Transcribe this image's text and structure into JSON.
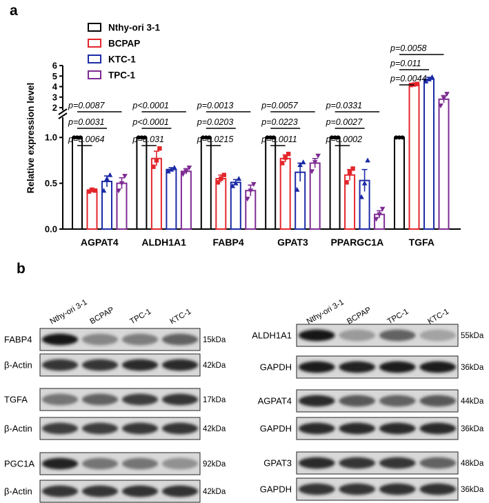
{
  "panels": {
    "a": "a",
    "b": "b"
  },
  "chart_data": {
    "type": "bar",
    "ylabel": "Relative expression level",
    "categories": [
      "AGPAT4",
      "ALDH1A1",
      "FABP4",
      "GPAT3",
      "PPARGC1A",
      "TGFA"
    ],
    "y_ticks_lower": [
      "0.0",
      "0.5",
      "1.0"
    ],
    "y_ticks_upper": [
      "2",
      "3",
      "4",
      "5",
      "6"
    ],
    "axis_break": {
      "lower": [
        0,
        1.22
      ],
      "upper": [
        2,
        6
      ]
    },
    "colors": {
      "Nthy-ori 3-1": "#000000",
      "BCPAP": "#e3262b",
      "KTC-1": "#1b2aa6",
      "TPC-1": "#7d2b92"
    },
    "series": [
      {
        "name": "Nthy-ori 3-1",
        "marker": "circle",
        "values": [
          1.0,
          1.0,
          1.0,
          1.0,
          1.0,
          1.0
        ],
        "errors": [
          0.01,
          0.01,
          0.01,
          0.01,
          0.01,
          0.01
        ],
        "points": [
          [
            1,
            1,
            1
          ],
          [
            1,
            1,
            1
          ],
          [
            1,
            1,
            1
          ],
          [
            1,
            1,
            1
          ],
          [
            1,
            1,
            1
          ],
          [
            1,
            1,
            1
          ]
        ]
      },
      {
        "name": "BCPAP",
        "marker": "square",
        "values": [
          0.42,
          0.77,
          0.55,
          0.77,
          0.59,
          4.2
        ],
        "errors": [
          0.02,
          0.08,
          0.04,
          0.04,
          0.06,
          0.12
        ],
        "points": [
          [
            0.41,
            0.43,
            0.42
          ],
          [
            0.68,
            0.75,
            0.88
          ],
          [
            0.51,
            0.55,
            0.59
          ],
          [
            0.72,
            0.78,
            0.82
          ],
          [
            0.51,
            0.62,
            0.66
          ],
          [
            4.15,
            4.2,
            4.25
          ]
        ]
      },
      {
        "name": "KTC-1",
        "marker": "triangle",
        "values": [
          0.52,
          0.65,
          0.51,
          0.62,
          0.53,
          4.7
        ],
        "errors": [
          0.06,
          0.02,
          0.03,
          0.1,
          0.12,
          0.18
        ],
        "points": [
          [
            0.42,
            0.55,
            0.59
          ],
          [
            0.63,
            0.65,
            0.67
          ],
          [
            0.47,
            0.5,
            0.55
          ],
          [
            0.43,
            0.7,
            0.73
          ],
          [
            0.35,
            0.5,
            0.75
          ],
          [
            4.5,
            4.7,
            4.9
          ]
        ]
      },
      {
        "name": "TPC-1",
        "marker": "triangle-down",
        "values": [
          0.5,
          0.63,
          0.42,
          0.72,
          0.16,
          2.8
        ],
        "errors": [
          0.06,
          0.03,
          0.06,
          0.05,
          0.04,
          0.35
        ],
        "points": [
          [
            0.42,
            0.5,
            0.58
          ],
          [
            0.6,
            0.63,
            0.67
          ],
          [
            0.33,
            0.42,
            0.49
          ],
          [
            0.63,
            0.73,
            0.8
          ],
          [
            0.11,
            0.16,
            0.22
          ],
          [
            2.2,
            2.9,
            3.3
          ]
        ]
      }
    ],
    "pvalues": [
      [
        "p=0.0087",
        "p=0.0031",
        "p=0.0064"
      ],
      [
        "p<0.0001",
        "p<0.0001",
        "p=0.031"
      ],
      [
        "p=0.0013",
        "p=0.0203",
        "p=0.0215"
      ],
      [
        "p=0.0057",
        "p=0.0223",
        "p=0.0011"
      ],
      [
        "p=0.0331",
        "p=0.0027",
        "p=0.0002"
      ],
      [
        "p=0.0058",
        "p=0.011",
        "p=0.0044"
      ]
    ]
  },
  "western": {
    "left": {
      "lanes": [
        "Nthy-ori 3-1",
        "BCPAP",
        "TPC-1",
        "KTC-1"
      ],
      "blots": [
        {
          "label": "FABP4",
          "kda": "15kDa",
          "intensity": [
            0.95,
            0.35,
            0.4,
            0.55
          ]
        },
        {
          "label": "β-Actin",
          "kda": "42kDa",
          "intensity": [
            0.8,
            0.8,
            0.85,
            0.85
          ]
        },
        {
          "label": "TGFA",
          "kda": "17kDa",
          "intensity": [
            0.45,
            0.55,
            0.75,
            0.8
          ]
        },
        {
          "label": "β-Actin",
          "kda": "42kDa",
          "intensity": [
            0.75,
            0.75,
            0.78,
            0.8
          ]
        },
        {
          "label": "PGC1A",
          "kda": "92kDa",
          "intensity": [
            0.9,
            0.45,
            0.45,
            0.3
          ]
        },
        {
          "label": "β-Actin",
          "kda": "42kDa",
          "intensity": [
            0.8,
            0.8,
            0.82,
            0.82
          ]
        }
      ]
    },
    "right": {
      "lanes": [
        "Nthy-ori 3-1",
        "BCPAP",
        "TPC-1",
        "KTC-1"
      ],
      "blots": [
        {
          "label": "ALDH1A1",
          "kda": "55kDa",
          "intensity": [
            0.95,
            0.25,
            0.55,
            0.2
          ]
        },
        {
          "label": "GAPDH",
          "kda": "36kDa",
          "intensity": [
            0.92,
            0.9,
            0.92,
            0.92
          ]
        },
        {
          "label": "AGPAT4",
          "kda": "44kDa",
          "intensity": [
            0.85,
            0.6,
            0.55,
            0.6
          ]
        },
        {
          "label": "GAPDH",
          "kda": "36kDa",
          "intensity": [
            0.85,
            0.85,
            0.85,
            0.85
          ]
        },
        {
          "label": "GPAT3",
          "kda": "48kDa",
          "intensity": [
            0.85,
            0.8,
            0.8,
            0.55
          ]
        },
        {
          "label": "GAPDH",
          "kda": "36kDa",
          "intensity": [
            0.8,
            0.8,
            0.82,
            0.82
          ]
        }
      ]
    }
  }
}
